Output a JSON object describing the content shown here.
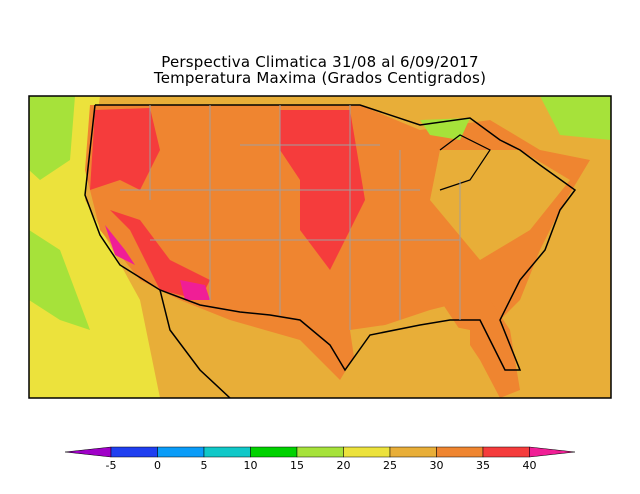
{
  "title": {
    "line1": "Perspectiva Climatica 31/08 al 6/09/2017",
    "line2": "Temperatura Maxima (Grados Centigrados)"
  },
  "colorbar": {
    "ticks": [
      "-5",
      "0",
      "5",
      "10",
      "15",
      "20",
      "25",
      "30",
      "35",
      "40"
    ],
    "colors": [
      "#1f3ff0",
      "#0a9cf8",
      "#10c8c8",
      "#00d200",
      "#a6e23a",
      "#ece23c",
      "#e8ae38",
      "#ef8530",
      "#f53c3c"
    ],
    "under_color": "#a000c8",
    "over_color": "#f01e96"
  },
  "map": {
    "region": "Contiguous United States",
    "dominant_range": "30-35",
    "colors": {
      "ocean_pacific": "#ece23c",
      "ocean_gulf": "#e8ae38",
      "land": "#ef8530",
      "hot": "#f53c3c",
      "extreme": "#f01e96",
      "cool": "#a6e23a"
    }
  }
}
